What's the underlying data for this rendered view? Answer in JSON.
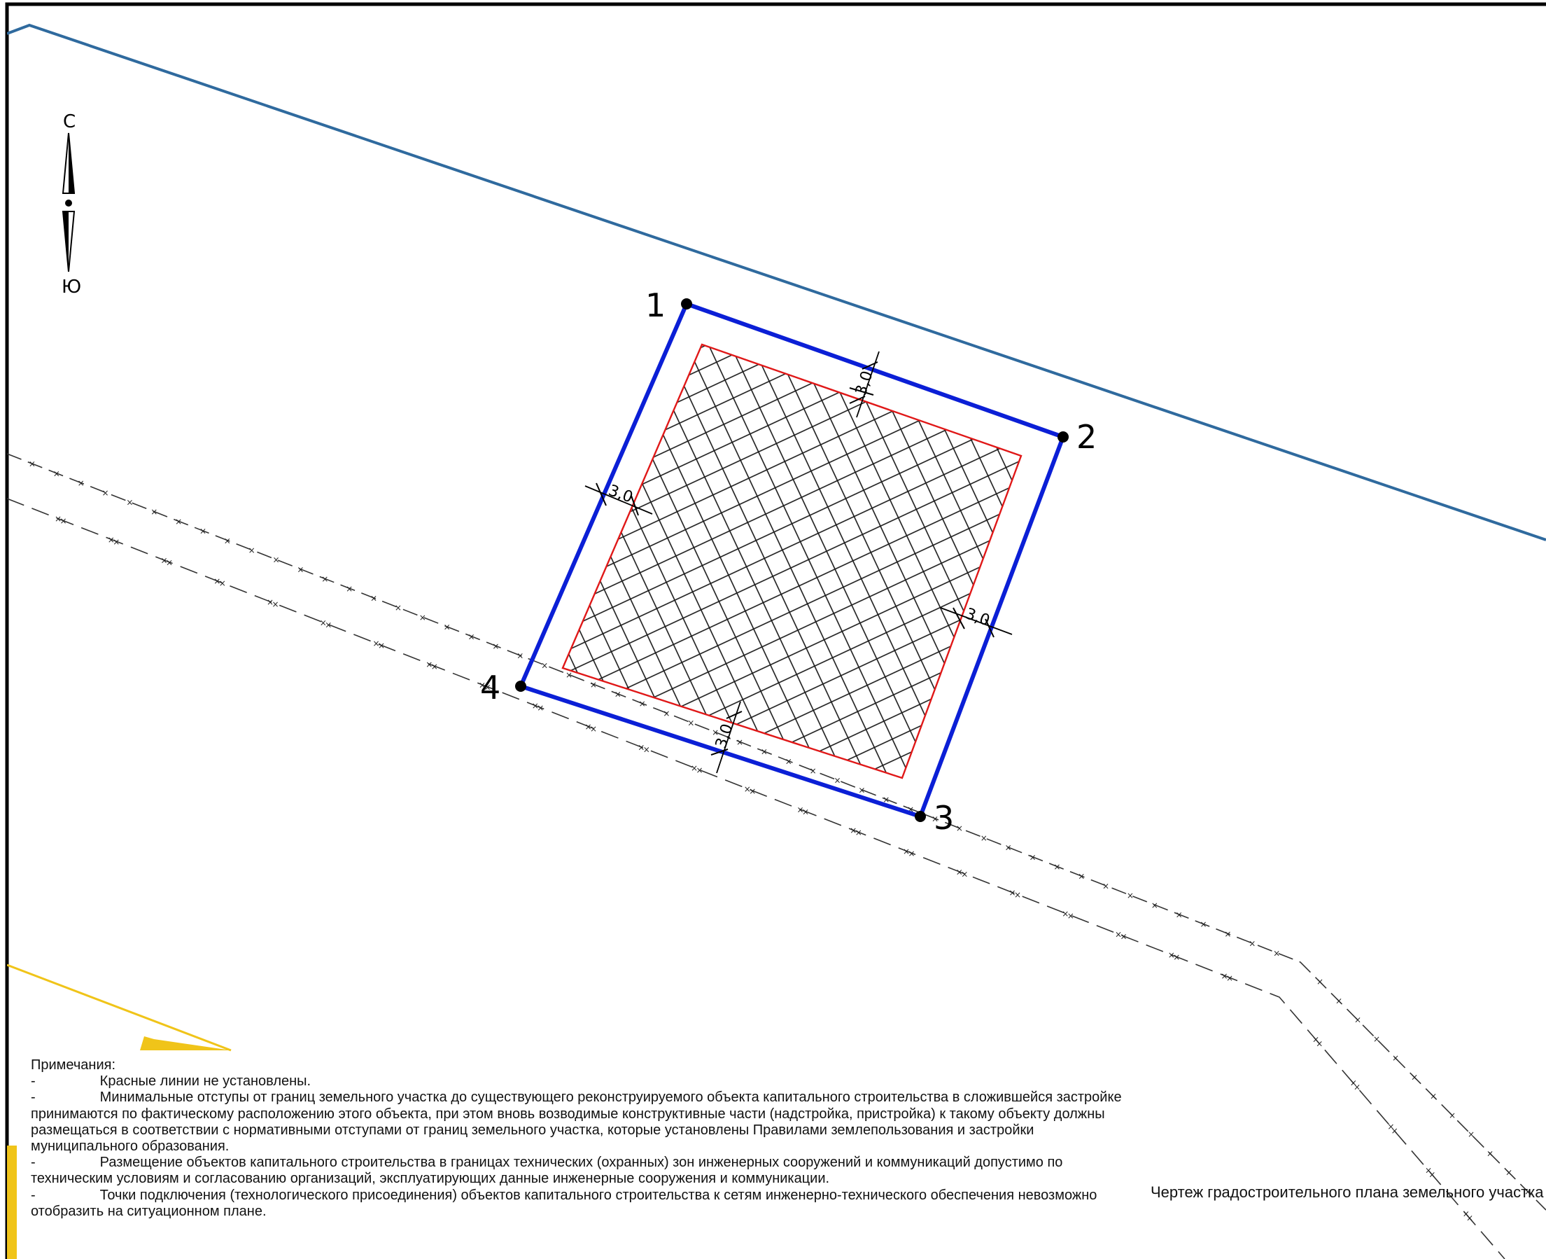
{
  "compass": {
    "north_label": "С",
    "south_label": "Ю",
    "icon": "north-arrow-icon"
  },
  "points": [
    {
      "label": "1"
    },
    {
      "label": "2"
    },
    {
      "label": "3"
    },
    {
      "label": "4"
    }
  ],
  "setbacks": [
    {
      "label": "3,0"
    },
    {
      "label": "3,0"
    },
    {
      "label": "3,0"
    },
    {
      "label": "3,0"
    }
  ],
  "notes": {
    "heading": "Примечания:",
    "items": [
      "Красные линии не установлены.",
      "Минимальные отступы от границ земельного участка до существующего реконструируемого объекта капитального строительства в сложившейся застройке принимаются по фактическому расположению этого объекта, при этом вновь возводимые конструктивные части (надстройка, пристройка) к такому объекту должны размещаться в соответствии с нормативными отступами от границ земельного участка, которые установлены Правилами землепользования и застройки муниципального образования.",
      "Размещение объектов капитального строительства в границах технических (охранных) зон инженерных сооружений и коммуникаций допустимо по техническим условиям и согласованию организаций, эксплуатирующих данные инженерные сооружения и коммуникации.",
      "Точки подключения (технологического присоединения) объектов капитального строительства к сетям инженерно-технического обеспечения невозможно отобразить на ситуационном плане."
    ]
  },
  "drawing_title": "Чертеж градостроительного плана земельного участка",
  "colors": {
    "parcel_boundary": "#0b1fd6",
    "build_zone": "#e01818",
    "road_boundary": "#2f6a9e",
    "hatch": "#1a1a1a",
    "yellow_line": "#f0c419"
  }
}
